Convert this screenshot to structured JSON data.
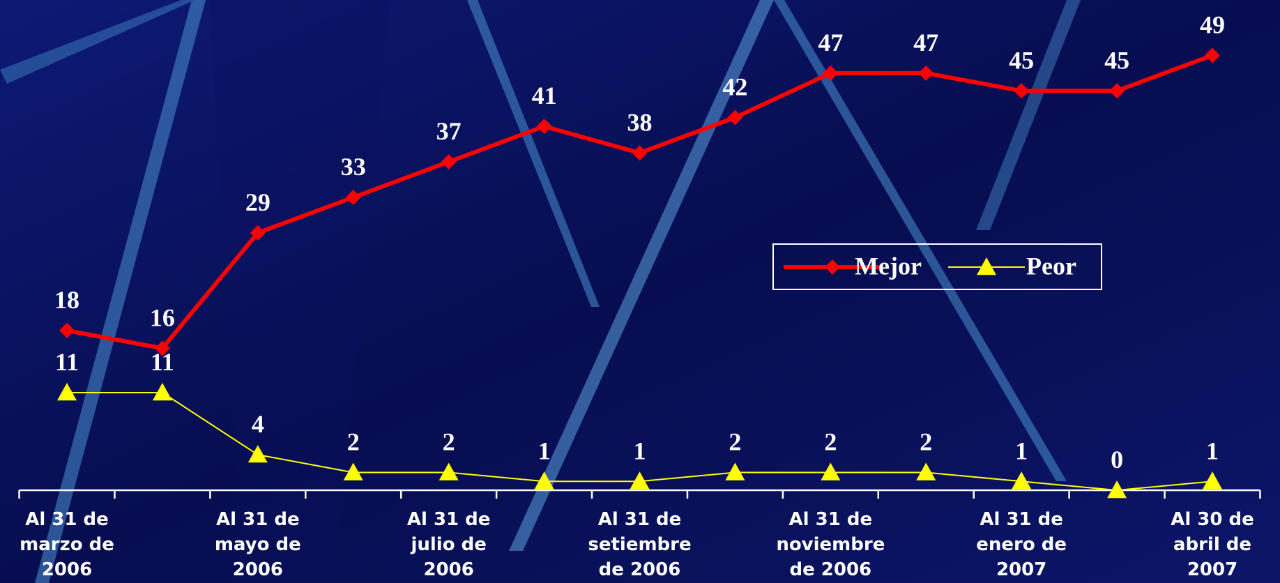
{
  "chart_data": {
    "type": "line",
    "categories": [
      "Al 31 de\nmarzo de\n2006",
      null,
      "Al 31 de\nmayo de\n2006",
      null,
      "Al 31 de\njulio de\n2006",
      null,
      "Al 31 de\nsetiembre\nde 2006",
      null,
      "Al 31 de\nnoviembre\nde 2006",
      null,
      "Al 31 de\nenero de\n2007",
      null,
      "Al 30 de\nabril de\n2007"
    ],
    "series": [
      {
        "name": "Mejor",
        "color": "#ff0000",
        "marker": "diamond",
        "values": [
          18,
          16,
          29,
          33,
          37,
          41,
          38,
          42,
          47,
          47,
          45,
          45,
          49
        ]
      },
      {
        "name": "Peor",
        "color": "#ffff00",
        "marker": "triangle",
        "values": [
          11,
          11,
          4,
          2,
          2,
          1,
          1,
          2,
          2,
          2,
          1,
          0,
          1
        ]
      }
    ],
    "ylim": [
      0,
      55
    ],
    "grid": false,
    "legend": "right"
  }
}
